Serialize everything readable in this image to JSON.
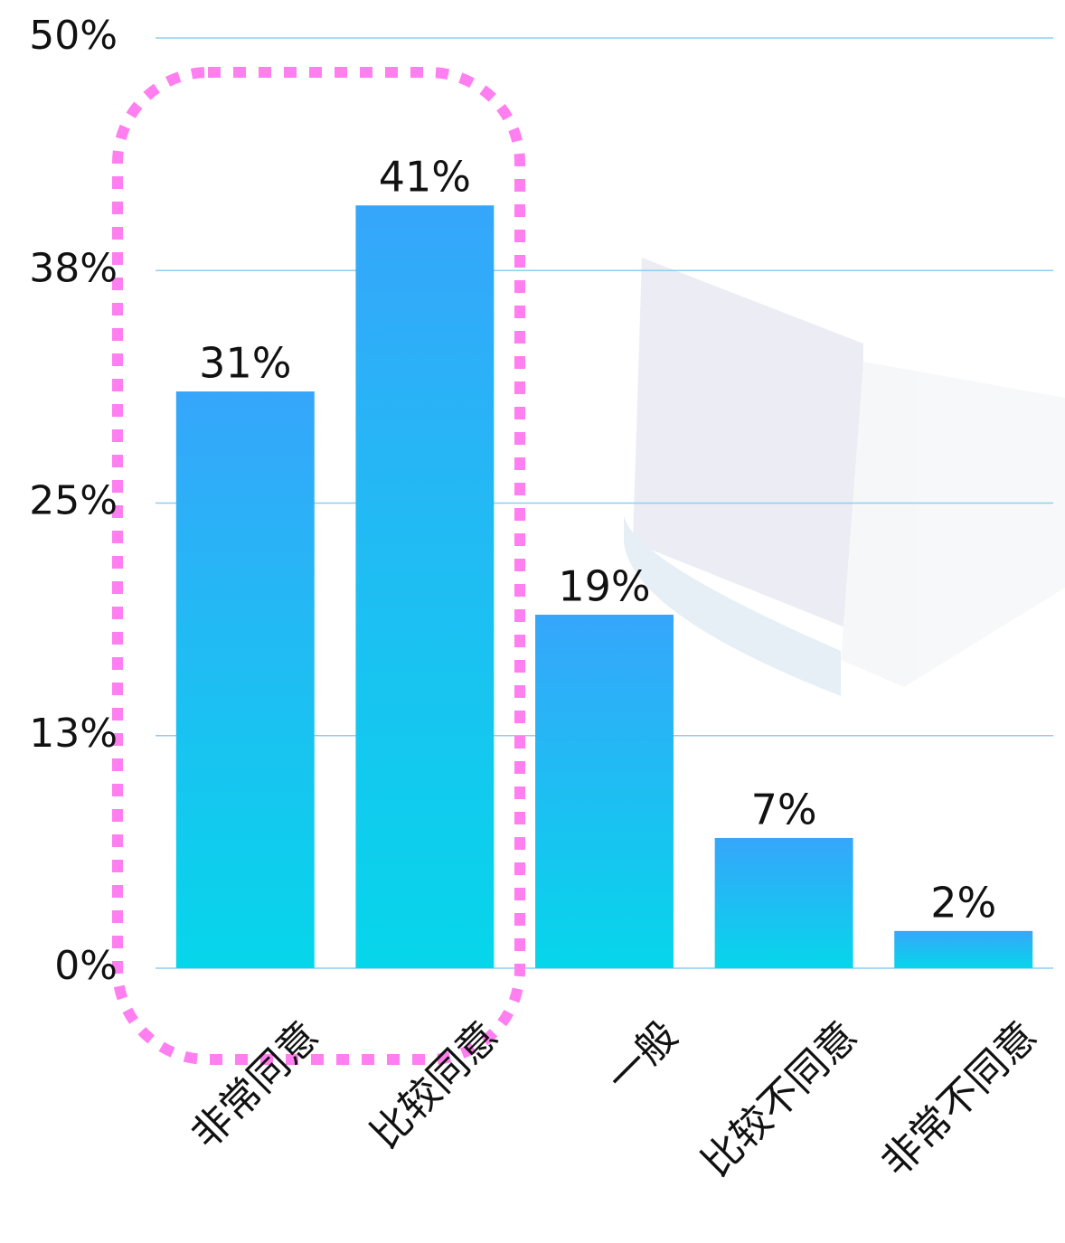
{
  "chart_data": {
    "type": "bar",
    "categories": [
      "非常同意",
      "比较同意",
      "一般",
      "比较不同意",
      "非常不同意"
    ],
    "values": [
      31,
      41,
      19,
      7,
      2
    ],
    "value_labels": [
      "31%",
      "41%",
      "19%",
      "7%",
      "2%"
    ],
    "color": [
      "#36a6fb",
      "#06d6ea"
    ],
    "ylim": [
      0,
      50
    ],
    "yticks": [
      {
        "value": 0,
        "label": "0%"
      },
      {
        "value": 12.5,
        "label": "13%"
      },
      {
        "value": 25,
        "label": "25%"
      },
      {
        "value": 37.5,
        "label": "38%"
      },
      {
        "value": 50,
        "label": "50%"
      }
    ],
    "grid": true
  }
}
